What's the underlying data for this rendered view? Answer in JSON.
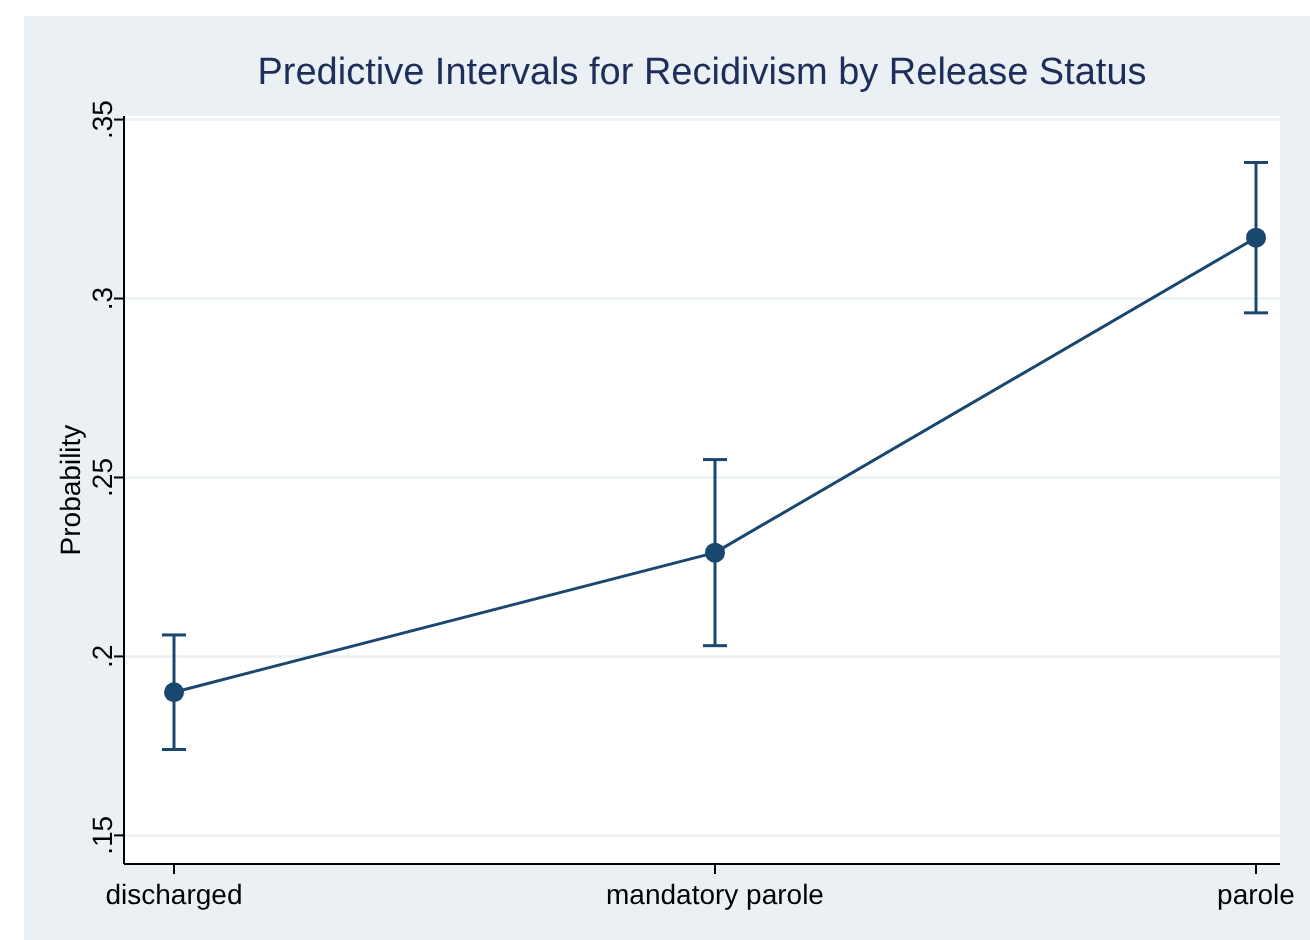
{
  "chart_data": {
    "type": "line",
    "title": "Predictive Intervals for Recidivism by Release Status",
    "ylabel": "Probability",
    "categories": [
      "discharged",
      "mandatory parole",
      "parole"
    ],
    "series": [
      {
        "color": "#1a476f",
        "values": [
          0.19,
          0.229,
          0.317
        ],
        "errors": [
          [
            0.174,
            0.206
          ],
          [
            0.203,
            0.255
          ],
          [
            0.296,
            0.338
          ]
        ]
      }
    ],
    "ylim": [
      0.142,
      0.351
    ],
    "yticks": [
      {
        "value": 0.15,
        "label": ".15"
      },
      {
        "value": 0.2,
        "label": ".2"
      },
      {
        "value": 0.25,
        "label": ".25"
      },
      {
        "value": 0.3,
        "label": ".3"
      },
      {
        "value": 0.35,
        "label": ".35"
      }
    ],
    "grid": "y",
    "marker": "circle",
    "line_style": "solid"
  }
}
